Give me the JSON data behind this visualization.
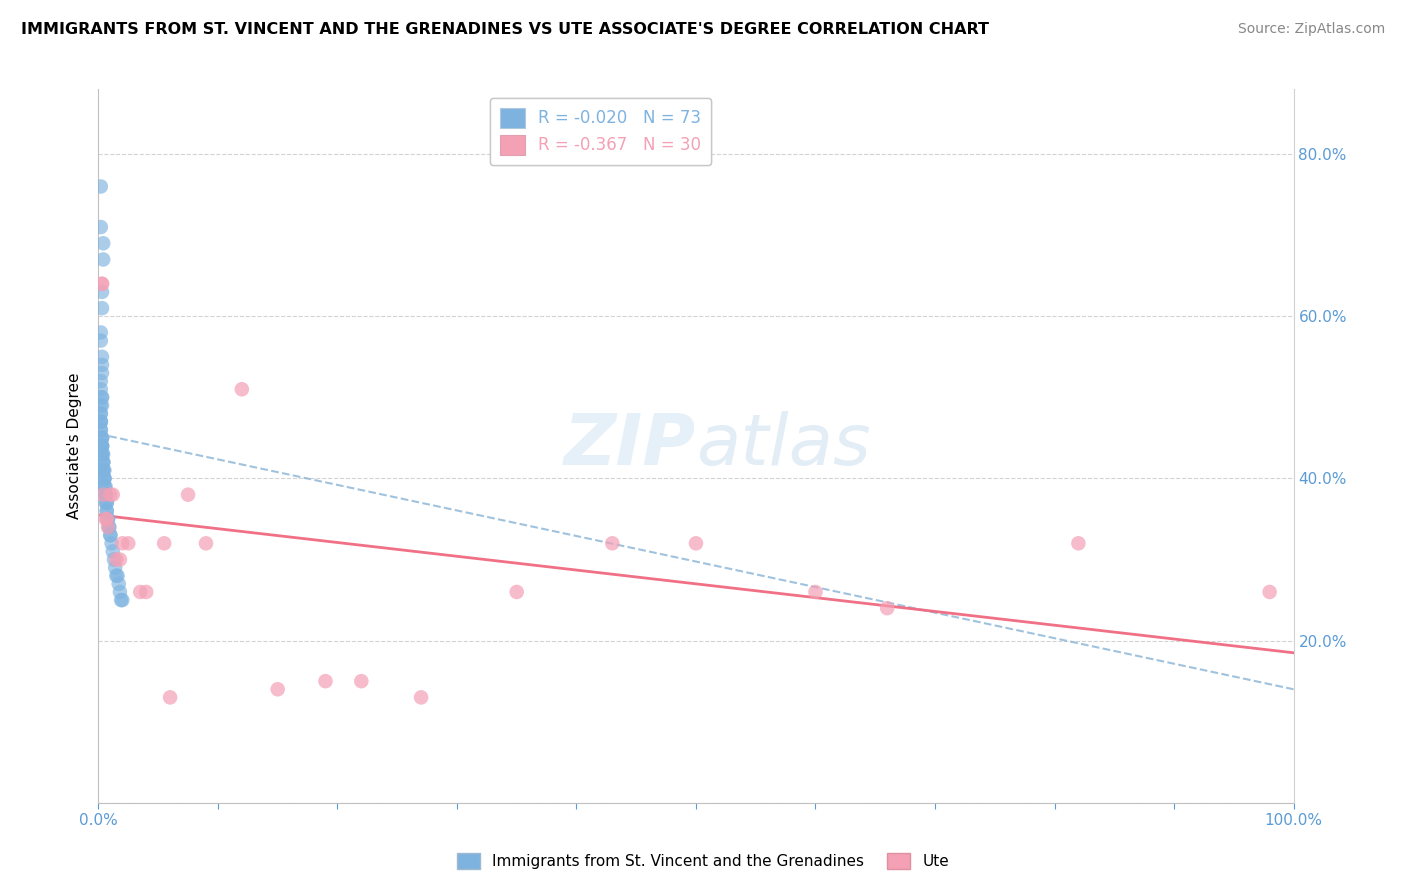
{
  "title": "IMMIGRANTS FROM ST. VINCENT AND THE GRENADINES VS UTE ASSOCIATE'S DEGREE CORRELATION CHART",
  "source": "Source: ZipAtlas.com",
  "ylabel": "Associate's Degree",
  "R_blue": -0.02,
  "N_blue": 73,
  "R_pink": -0.367,
  "N_pink": 30,
  "blue_color": "#7eb3e0",
  "pink_color": "#f4a0b5",
  "blue_line_color": "#90b8d8",
  "pink_line_color": "#f06880",
  "xlim": [
    0.0,
    1.0
  ],
  "ylim": [
    0.0,
    0.88
  ],
  "blue_trendline_start": 0.455,
  "blue_trendline_end": 0.14,
  "pink_trendline_start": 0.355,
  "pink_trendline_end": 0.185,
  "blue_x": [
    0.002,
    0.004,
    0.004,
    0.003,
    0.003,
    0.002,
    0.002,
    0.003,
    0.003,
    0.003,
    0.002,
    0.002,
    0.003,
    0.003,
    0.003,
    0.002,
    0.002,
    0.002,
    0.002,
    0.002,
    0.002,
    0.002,
    0.002,
    0.003,
    0.003,
    0.003,
    0.003,
    0.003,
    0.003,
    0.003,
    0.003,
    0.003,
    0.003,
    0.003,
    0.004,
    0.004,
    0.004,
    0.004,
    0.004,
    0.004,
    0.004,
    0.005,
    0.005,
    0.005,
    0.005,
    0.005,
    0.005,
    0.006,
    0.006,
    0.006,
    0.006,
    0.006,
    0.007,
    0.007,
    0.007,
    0.007,
    0.008,
    0.008,
    0.009,
    0.009,
    0.01,
    0.01,
    0.011,
    0.012,
    0.013,
    0.014,
    0.015,
    0.016,
    0.017,
    0.018,
    0.019,
    0.02,
    0.002
  ],
  "blue_y": [
    0.76,
    0.69,
    0.67,
    0.63,
    0.61,
    0.58,
    0.57,
    0.55,
    0.54,
    0.53,
    0.52,
    0.51,
    0.5,
    0.5,
    0.49,
    0.49,
    0.48,
    0.48,
    0.47,
    0.47,
    0.47,
    0.46,
    0.46,
    0.45,
    0.45,
    0.45,
    0.44,
    0.44,
    0.44,
    0.44,
    0.43,
    0.43,
    0.43,
    0.43,
    0.43,
    0.42,
    0.42,
    0.42,
    0.41,
    0.41,
    0.41,
    0.41,
    0.4,
    0.4,
    0.4,
    0.39,
    0.39,
    0.39,
    0.38,
    0.38,
    0.38,
    0.37,
    0.37,
    0.37,
    0.36,
    0.36,
    0.35,
    0.35,
    0.34,
    0.34,
    0.33,
    0.33,
    0.32,
    0.31,
    0.3,
    0.29,
    0.28,
    0.28,
    0.27,
    0.26,
    0.25,
    0.25,
    0.71
  ],
  "pink_x": [
    0.003,
    0.003,
    0.004,
    0.006,
    0.007,
    0.008,
    0.01,
    0.012,
    0.015,
    0.018,
    0.02,
    0.025,
    0.035,
    0.04,
    0.055,
    0.06,
    0.075,
    0.09,
    0.12,
    0.15,
    0.19,
    0.22,
    0.27,
    0.35,
    0.43,
    0.5,
    0.6,
    0.66,
    0.82,
    0.98
  ],
  "pink_y": [
    0.64,
    0.64,
    0.38,
    0.35,
    0.35,
    0.34,
    0.38,
    0.38,
    0.3,
    0.3,
    0.32,
    0.32,
    0.26,
    0.26,
    0.32,
    0.13,
    0.38,
    0.32,
    0.51,
    0.14,
    0.15,
    0.15,
    0.13,
    0.26,
    0.32,
    0.32,
    0.26,
    0.24,
    0.32,
    0.26
  ]
}
